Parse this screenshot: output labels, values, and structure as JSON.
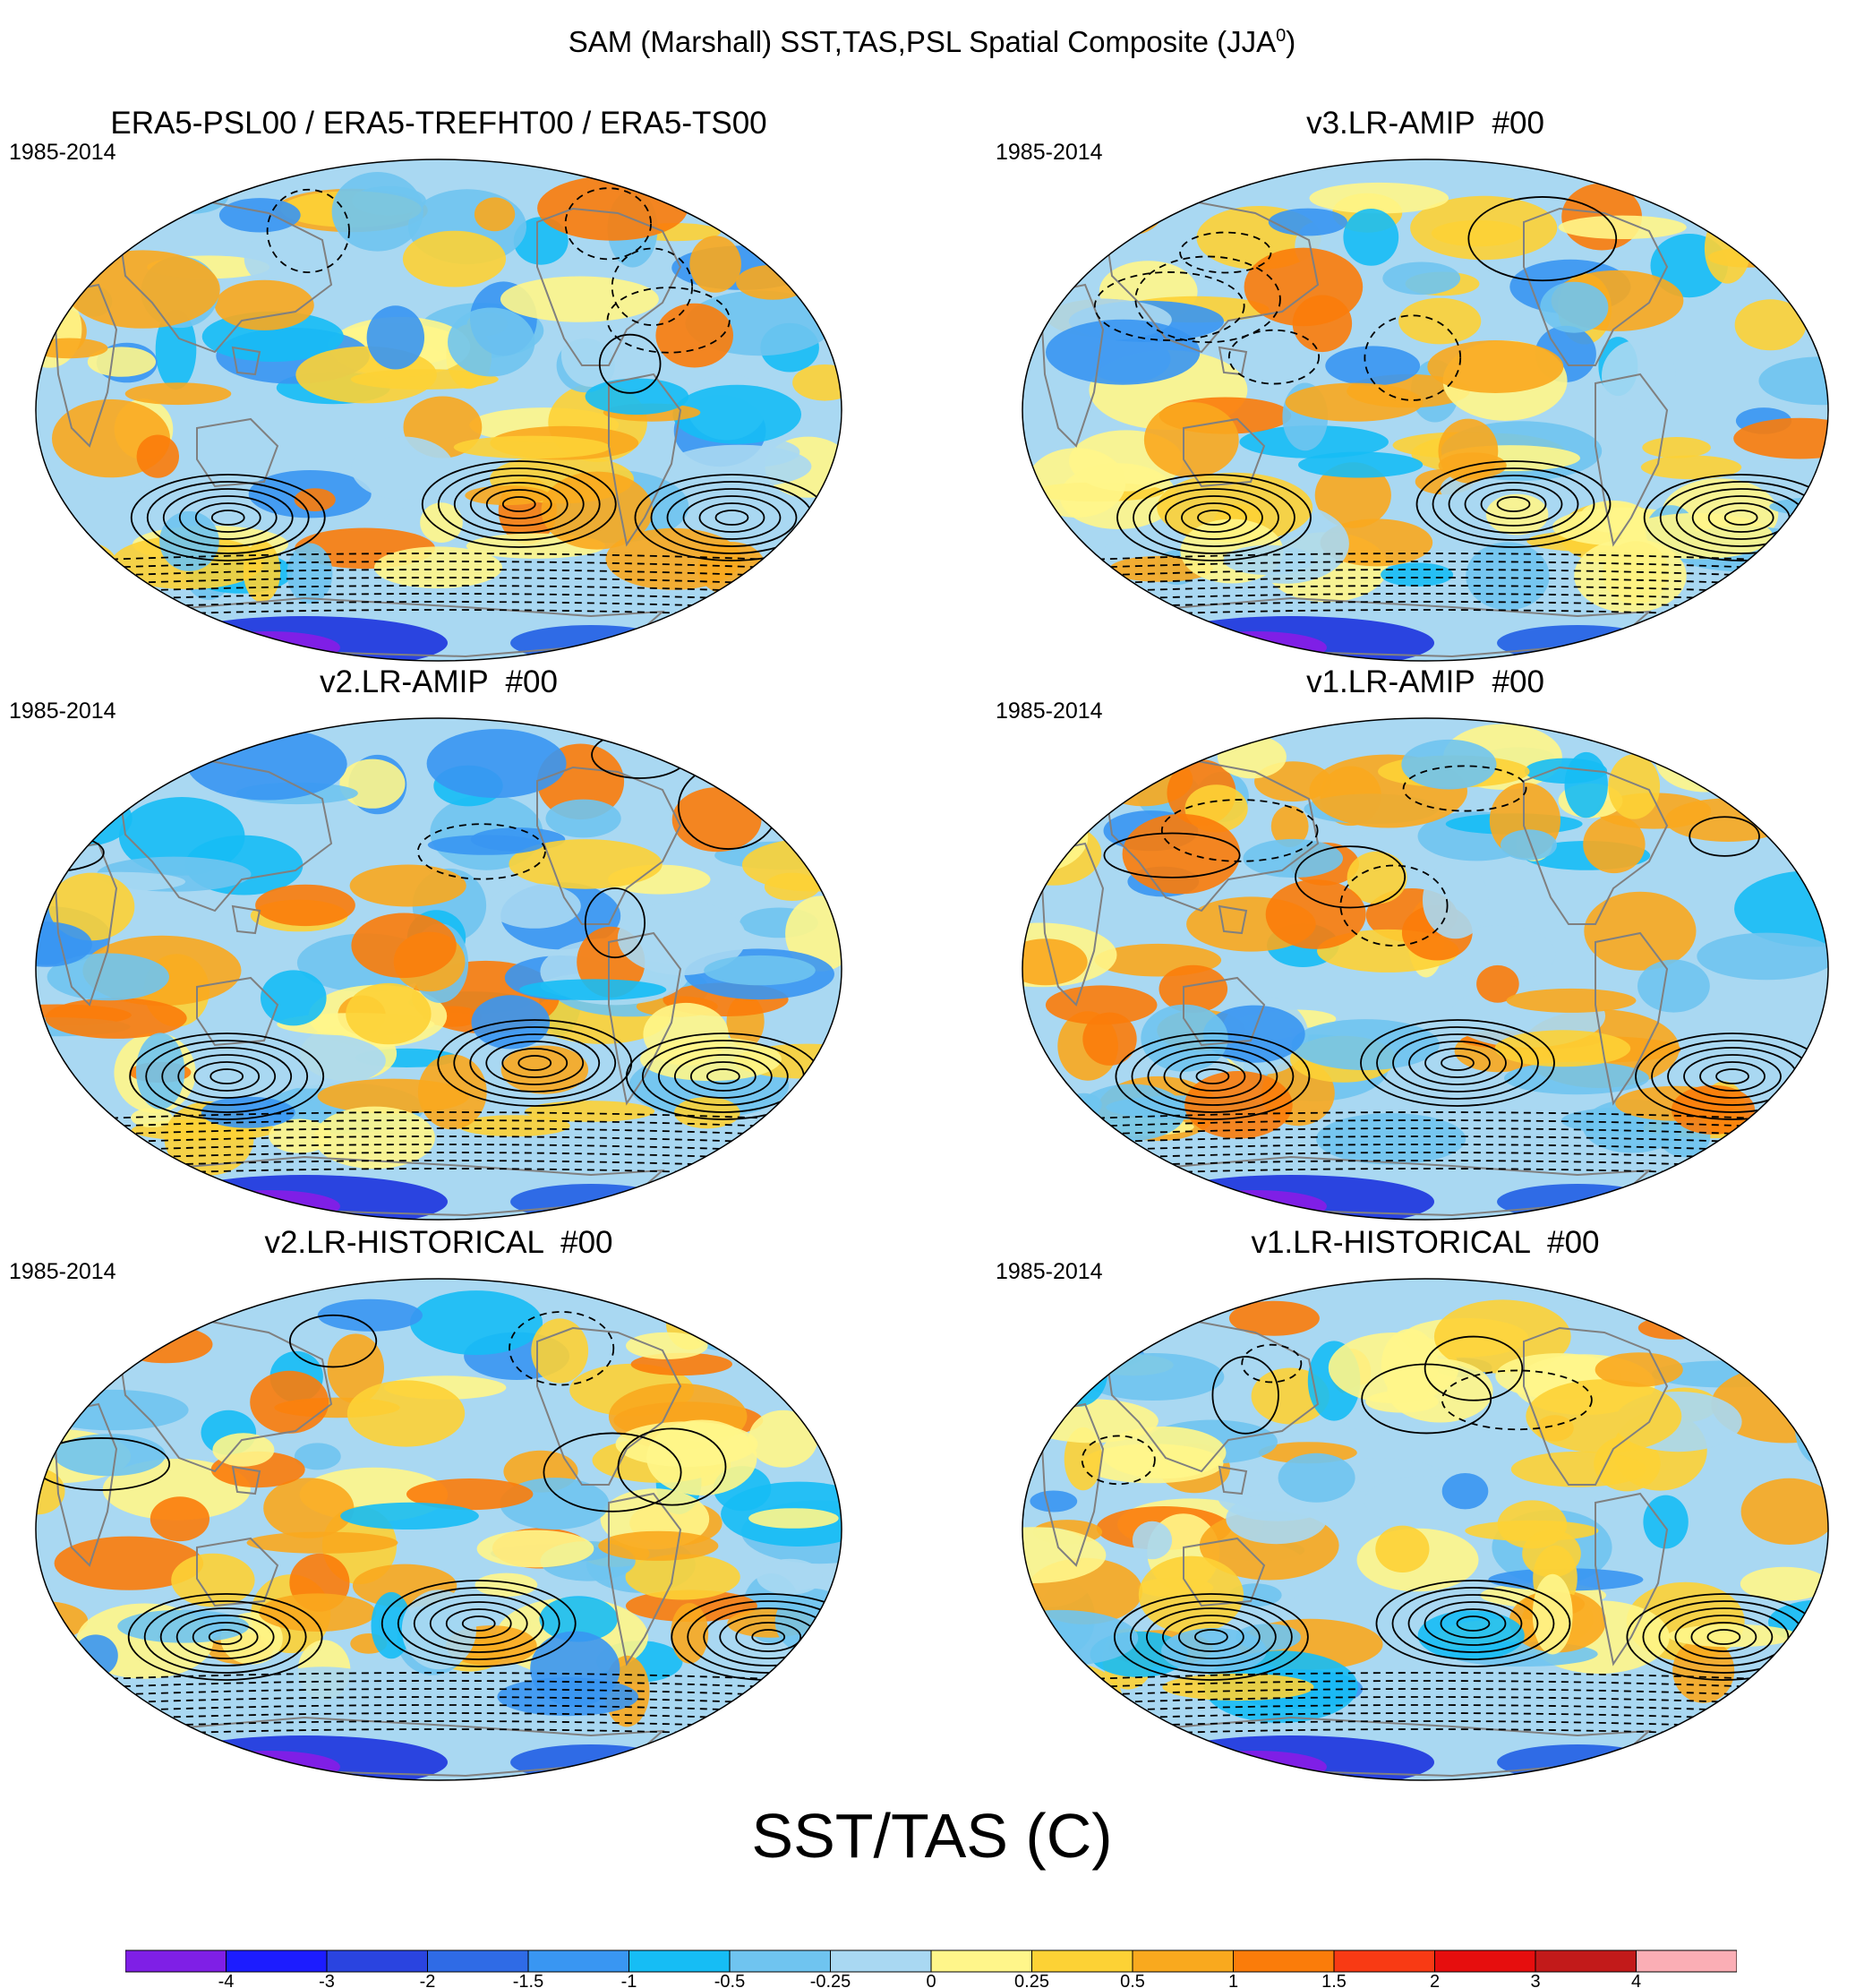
{
  "figure": {
    "title_main": "SAM (Marshall) SST,TAS,PSL Spatial Composite (JJA",
    "title_sup": "0",
    "title_close": ")"
  },
  "panels": [
    {
      "id": "era5",
      "title": "ERA5-PSL00 / ERA5-TREFHT00 / ERA5-TS00",
      "period": "1985-2014"
    },
    {
      "id": "v3-amip",
      "title": "v3.LR-AMIP  #00",
      "period": "1985-2014"
    },
    {
      "id": "v2-amip",
      "title": "v2.LR-AMIP  #00",
      "period": "1985-2014"
    },
    {
      "id": "v1-amip",
      "title": "v1.LR-AMIP  #00",
      "period": "1985-2014"
    },
    {
      "id": "v2-hist",
      "title": "v2.LR-HISTORICAL  #00",
      "period": "1985-2014"
    },
    {
      "id": "v1-hist",
      "title": "v1.LR-HISTORICAL  #00",
      "period": "1985-2014"
    }
  ],
  "colorbar": {
    "title": "SST/TAS (C)",
    "levels": [
      "-4",
      "-3",
      "-2",
      "-1.5",
      "-1",
      "-0.5",
      "-0.25",
      "0",
      "0.25",
      "0.5",
      "1",
      "1.5",
      "2",
      "3",
      "4"
    ],
    "colors": [
      "#7f1fe6",
      "#1c1cff",
      "#2a44e0",
      "#2f6be6",
      "#3996f2",
      "#16bdf5",
      "#6fc4f0",
      "#a9d8f2",
      "#fff68a",
      "#fdd235",
      "#f9a91e",
      "#fb7c0a",
      "#f83a14",
      "#e60e0e",
      "#c21a1a",
      "#fbaeb5"
    ]
  },
  "map_style": {
    "land_outline": "#808080",
    "contour_color": "#000000",
    "background_fill": "#a9d8f2"
  }
}
